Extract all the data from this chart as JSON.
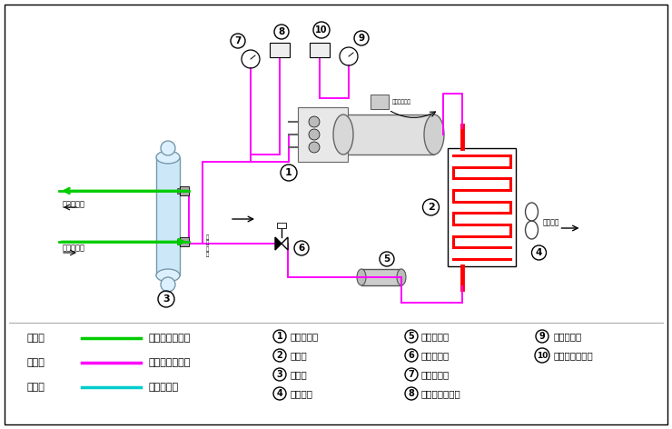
{
  "bg_color": "#ffffff",
  "legend_items": [
    {
      "label_left": "绿色线",
      "line_color": "#00cc00",
      "label_right": "载冷剂循环回路"
    },
    {
      "label_left": "红色线",
      "line_color": "#ff00ff",
      "label_right": "制冷剂循环回路"
    },
    {
      "label_left": "蓝色线",
      "line_color": "#00cccc",
      "label_right": "水循环回路"
    }
  ],
  "numbered_items_col1": [
    {
      "num": "1",
      "text": "螺杆压缩机"
    },
    {
      "num": "2",
      "text": "冷凝器"
    },
    {
      "num": "3",
      "text": "蒸发器"
    },
    {
      "num": "4",
      "text": "冷却风扇"
    }
  ],
  "numbered_items_col2": [
    {
      "num": "5",
      "text": "干燥过滤器"
    },
    {
      "num": "6",
      "text": "供液膨胀阀"
    },
    {
      "num": "7",
      "text": "低压压力表"
    },
    {
      "num": "8",
      "text": "低压压力控制器"
    }
  ],
  "numbered_items_col3": [
    {
      "num": "9",
      "text": "高压压力表"
    },
    {
      "num": "10",
      "text": "高压压力控制器"
    }
  ],
  "pink": "#ff00ff",
  "red": "#ff0000",
  "green": "#00cc00",
  "cyan": "#00cccc",
  "label_evap_in": "载冷剂流入",
  "label_evap_out": "载冷剂出口",
  "label_fan_air": "风冷流向",
  "label_hp_valve": "高压排气逆阀"
}
